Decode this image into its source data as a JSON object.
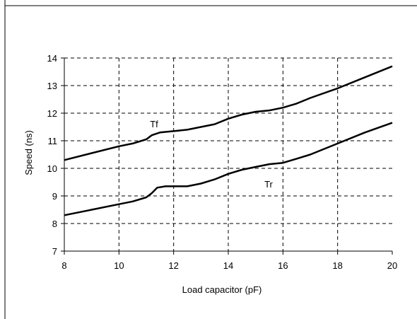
{
  "chart_data": {
    "type": "line",
    "title": "",
    "xlabel": "Load capacitor (pF)",
    "ylabel": "Speed (ns)",
    "xlim": [
      8,
      20
    ],
    "ylim": [
      7,
      14
    ],
    "x_ticks": [
      8,
      10,
      12,
      14,
      16,
      18,
      20
    ],
    "y_ticks": [
      7,
      8,
      9,
      10,
      11,
      12,
      13,
      14
    ],
    "grid": "dashed",
    "legend": "none",
    "series": [
      {
        "name": "Tf",
        "color": "#000000",
        "points": [
          [
            8,
            10.3
          ],
          [
            9,
            10.55
          ],
          [
            10,
            10.8
          ],
          [
            10.5,
            10.9
          ],
          [
            11,
            11.05
          ],
          [
            11.2,
            11.2
          ],
          [
            11.5,
            11.3
          ],
          [
            12,
            11.35
          ],
          [
            12.5,
            11.4
          ],
          [
            13,
            11.5
          ],
          [
            13.5,
            11.6
          ],
          [
            14,
            11.8
          ],
          [
            14.5,
            11.95
          ],
          [
            15,
            12.05
          ],
          [
            15.5,
            12.1
          ],
          [
            16,
            12.2
          ],
          [
            16.5,
            12.35
          ],
          [
            17,
            12.55
          ],
          [
            18,
            12.9
          ],
          [
            19,
            13.3
          ],
          [
            20,
            13.7
          ]
        ]
      },
      {
        "name": "Tr",
        "color": "#000000",
        "points": [
          [
            8,
            8.3
          ],
          [
            9,
            8.5
          ],
          [
            10,
            8.7
          ],
          [
            10.5,
            8.8
          ],
          [
            11,
            8.95
          ],
          [
            11.2,
            9.1
          ],
          [
            11.4,
            9.3
          ],
          [
            11.7,
            9.35
          ],
          [
            12,
            9.35
          ],
          [
            12.5,
            9.35
          ],
          [
            13,
            9.45
          ],
          [
            13.5,
            9.6
          ],
          [
            14,
            9.8
          ],
          [
            14.5,
            9.95
          ],
          [
            15,
            10.05
          ],
          [
            15.5,
            10.15
          ],
          [
            16,
            10.2
          ],
          [
            16.5,
            10.35
          ],
          [
            17,
            10.5
          ],
          [
            18,
            10.9
          ],
          [
            19,
            11.3
          ],
          [
            20,
            11.65
          ]
        ]
      }
    ]
  }
}
